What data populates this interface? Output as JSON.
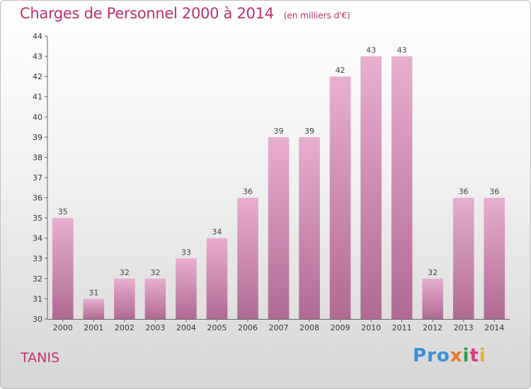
{
  "title": "Charges de Personnel 2000 à 2014",
  "subtitle": "(en milliers d'€)",
  "commune": "TANIS",
  "logo": [
    "Pro",
    "x",
    "i",
    "t",
    "i"
  ],
  "colors": {
    "bar_top": "#e8aed0",
    "bar_bottom": "#b06a94",
    "title": "#c03070"
  },
  "chart_data": {
    "type": "bar",
    "categories": [
      "2000",
      "2001",
      "2002",
      "2003",
      "2004",
      "2005",
      "2006",
      "2007",
      "2008",
      "2009",
      "2010",
      "2011",
      "2012",
      "2013",
      "2014"
    ],
    "values": [
      35,
      31,
      32,
      32,
      33,
      34,
      36,
      39,
      39,
      42,
      43,
      43,
      32,
      36,
      36
    ],
    "title": "Charges de Personnel 2000 à 2014",
    "subtitle": "(en milliers d'€)",
    "xlabel": "",
    "ylabel": "",
    "ylim": [
      30,
      44
    ],
    "yticks": [
      30,
      31,
      32,
      33,
      34,
      35,
      36,
      37,
      38,
      39,
      40,
      41,
      42,
      43,
      44
    ],
    "grid": false,
    "legend": "none"
  }
}
